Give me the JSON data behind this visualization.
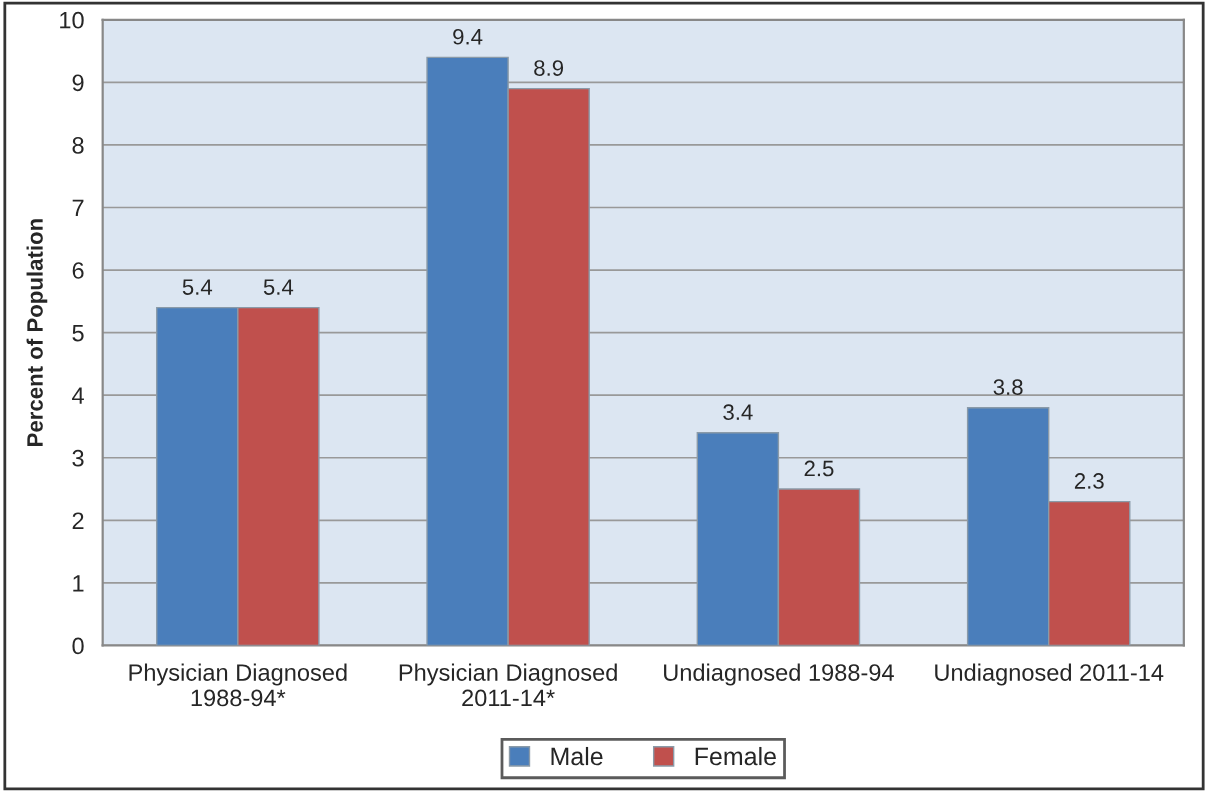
{
  "chart_data": {
    "type": "bar",
    "ylabel": "Percent of Population",
    "categories": [
      "Physician Diagnosed\n1988-94*",
      "Physician Diagnosed\n2011-14*",
      "Undiagnosed 1988-94",
      "Undiagnosed 2011-14"
    ],
    "series": [
      {
        "name": "Male",
        "color": "#4a7ebb",
        "values": [
          5.4,
          9.4,
          3.4,
          3.8
        ]
      },
      {
        "name": "Female",
        "color": "#c0504d",
        "values": [
          5.4,
          8.9,
          2.5,
          2.3
        ]
      }
    ],
    "ylim": [
      0,
      10
    ],
    "yticks": [
      0,
      1,
      2,
      3,
      4,
      5,
      6,
      7,
      8,
      9,
      10
    ],
    "grid": "y",
    "legend": "bottom",
    "data_labels": true
  }
}
